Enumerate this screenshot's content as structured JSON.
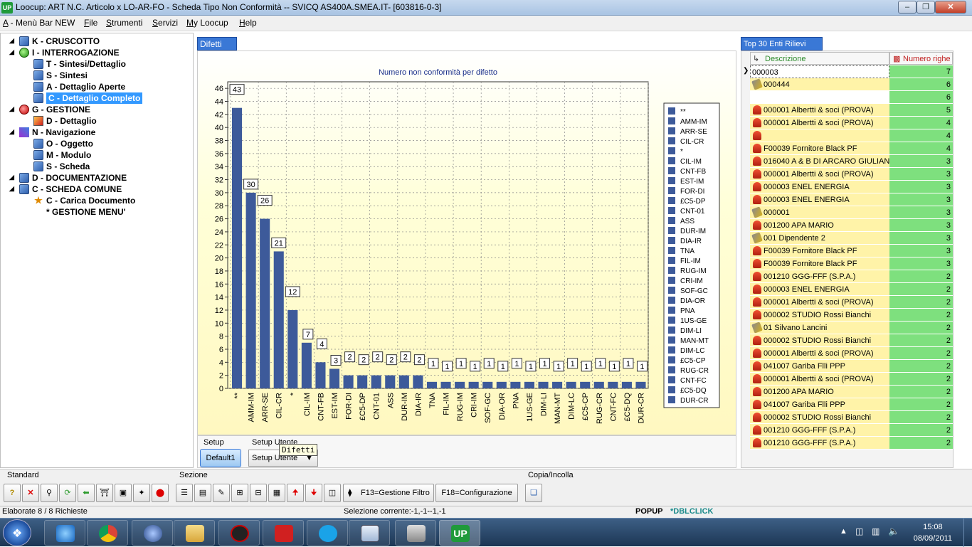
{
  "window": {
    "title": "Loocup: ART N.C. Articolo x LO-AR-FO - Scheda Tipo Non Conformità -- SVICQ AS400A.SMEA.IT- [603816-0-3]",
    "app_icon": "UP"
  },
  "menu": [
    {
      "key": "A",
      "rest": " - Menù Bar NEW"
    },
    {
      "key": "F",
      "rest": "ile"
    },
    {
      "key": "S",
      "rest": "trumenti"
    },
    {
      "key": "S",
      "rest": "ervizi"
    },
    {
      "key": "M",
      "rest": "y Loocup"
    },
    {
      "key": "H",
      "rest": "elp"
    }
  ],
  "tree": [
    {
      "label": "K - CRUSCOTTO",
      "icon": "document-icon"
    },
    {
      "label": "I - INTERROGAZIONE",
      "icon": "green-ball-icon"
    },
    {
      "label": "T - Sintesi/Dettaglio",
      "icon": "document-icon"
    },
    {
      "label": "S - Sintesi",
      "icon": "document-icon"
    },
    {
      "label": "A - Dettaglio Aperte",
      "icon": "document-icon"
    },
    {
      "label": "C - Dettaglio Completo",
      "icon": "document-icon",
      "selected": true
    },
    {
      "label": "G - GESTIONE",
      "icon": "red-ball-icon"
    },
    {
      "label": "D - Dettaglio",
      "icon": "module-icon"
    },
    {
      "label": "N - Navigazione",
      "icon": "navigation-icon"
    },
    {
      "label": "O - Oggetto",
      "icon": "document-icon"
    },
    {
      "label": "M - Modulo",
      "icon": "document-icon"
    },
    {
      "label": "S - Scheda",
      "icon": "document-icon"
    },
    {
      "label": "D - DOCUMENTAZIONE",
      "icon": "document-icon"
    },
    {
      "label": "C - SCHEDA COMUNE",
      "icon": "document-icon"
    },
    {
      "label": "C - Carica Documento",
      "icon": "star-icon"
    },
    {
      "label": "* GESTIONE MENU'",
      "icon": ""
    }
  ],
  "main_tab": "Difetti",
  "chart_data": {
    "type": "bar",
    "title": "Numero non conformità per difetto",
    "categories": [
      "**",
      "AMM-IM",
      "ARR-SE",
      "CIL-CR",
      "*",
      "CIL-IM",
      "CNT-FB",
      "EST-IM",
      "FOR-DI",
      "£C5-DP",
      "CNT-01",
      "ASS",
      "DUR-IM",
      "DIA-IR",
      "TNA",
      "FIL-IM",
      "RUG-IM",
      "CRI-IM",
      "SOF-GC",
      "DIA-OR",
      "PNA",
      "1US-GE",
      "DIM-LI",
      "MAN-MT",
      "DIM-LC",
      "£C5-CP",
      "RUG-CR",
      "CNT-FC",
      "£C5-DQ",
      "DUR-CR"
    ],
    "values": [
      43,
      30,
      26,
      21,
      12,
      7,
      4,
      3,
      2,
      2,
      2,
      2,
      2,
      2,
      1,
      1,
      1,
      1,
      1,
      1,
      1,
      1,
      1,
      1,
      1,
      1,
      1,
      1,
      1,
      1
    ],
    "yticks": [
      "0",
      "2",
      "4",
      "6",
      "8",
      "10",
      "12",
      "14",
      "16",
      "18",
      "20",
      "22",
      "24",
      "26",
      "28",
      "30",
      "32",
      "34",
      "36",
      "38",
      "40",
      "42",
      "44",
      "46"
    ],
    "ylim": [
      0,
      47
    ],
    "grid": true,
    "legend": "right",
    "bar_color": "#3d5a9a",
    "xlabel": "",
    "ylabel": ""
  },
  "setup": {
    "label": "Setup",
    "default_button": "Default1",
    "user_label": "Setup Utente",
    "user_dropdown": "Setup Utente",
    "tooltip": "Difetti"
  },
  "right": {
    "tab": "Top 30 Enti Rilievi",
    "col_desc": "Descrizione",
    "col_num": "Numero righe",
    "rows": [
      {
        "desc": "000003",
        "num": "7",
        "icon": ""
      },
      {
        "desc": "000444",
        "num": "6",
        "icon": "tool"
      },
      {
        "desc": "",
        "num": "6",
        "icon": ""
      },
      {
        "desc": "000001 Albertti & soci (PROVA)",
        "num": "5",
        "icon": "person"
      },
      {
        "desc": "000001 Albertti & soci (PROVA)",
        "num": "4",
        "icon": "person"
      },
      {
        "desc": "",
        "num": "4",
        "icon": "person"
      },
      {
        "desc": "F00039 Fornitore Black PF",
        "num": "4",
        "icon": "person"
      },
      {
        "desc": "016040 A & B DI ARCARO GIULIANO",
        "num": "3",
        "icon": "person"
      },
      {
        "desc": "000001 Albertti & soci (PROVA)",
        "num": "3",
        "icon": "person"
      },
      {
        "desc": "000003 ENEL ENERGIA",
        "num": "3",
        "icon": "person"
      },
      {
        "desc": "000003 ENEL ENERGIA",
        "num": "3",
        "icon": "person"
      },
      {
        "desc": "000001",
        "num": "3",
        "icon": "tool"
      },
      {
        "desc": "001200 APA MARIO",
        "num": "3",
        "icon": "person"
      },
      {
        "desc": "001 Dipendente 2",
        "num": "3",
        "icon": "tool"
      },
      {
        "desc": "F00039 Fornitore Black PF",
        "num": "3",
        "icon": "person"
      },
      {
        "desc": "F00039 Fornitore Black PF",
        "num": "3",
        "icon": "person"
      },
      {
        "desc": "001210 GGG-FFF (S.P.A.)",
        "num": "2",
        "icon": "person"
      },
      {
        "desc": "000003 ENEL ENERGIA",
        "num": "2",
        "icon": "person"
      },
      {
        "desc": "000001 Albertti & soci (PROVA)",
        "num": "2",
        "icon": "person"
      },
      {
        "desc": "000002 STUDIO Rossi Bianchi",
        "num": "2",
        "icon": "person"
      },
      {
        "desc": "01 Silvano Lancini",
        "num": "2",
        "icon": "tool"
      },
      {
        "desc": "000002 STUDIO Rossi Bianchi",
        "num": "2",
        "icon": "person"
      },
      {
        "desc": "000001 Albertti & soci (PROVA)",
        "num": "2",
        "icon": "person"
      },
      {
        "desc": "041007 Gariba Flli PPP",
        "num": "2",
        "icon": "person"
      },
      {
        "desc": "000001 Albertti & soci (PROVA)",
        "num": "2",
        "icon": "person"
      },
      {
        "desc": "001200 APA MARIO",
        "num": "2",
        "icon": "person"
      },
      {
        "desc": "041007 Gariba Flli PPP",
        "num": "2",
        "icon": "person"
      },
      {
        "desc": "000002 STUDIO Rossi Bianchi",
        "num": "2",
        "icon": "person"
      },
      {
        "desc": "001210 GGG-FFF (S.P.A.)",
        "num": "2",
        "icon": "person"
      },
      {
        "desc": "001210 GGG-FFF (S.P.A.)",
        "num": "2",
        "icon": "person"
      }
    ]
  },
  "toolbar": {
    "standard_label": "Standard",
    "sezione_label": "Sezione",
    "copia_label": "Copia/Incolla",
    "f13": "F13=Gestione Filtro",
    "f18": "F18=Configurazione"
  },
  "status": {
    "left": "Elaborate 8 / 8 Richieste",
    "middle": "Selezione corrente:-1,-1--1,-1",
    "popup": "POPUP",
    "dblclick": "*DBLCLICK"
  },
  "taskbar": {
    "time": "15:08",
    "date": "08/09/2011",
    "up_label": "UP"
  }
}
